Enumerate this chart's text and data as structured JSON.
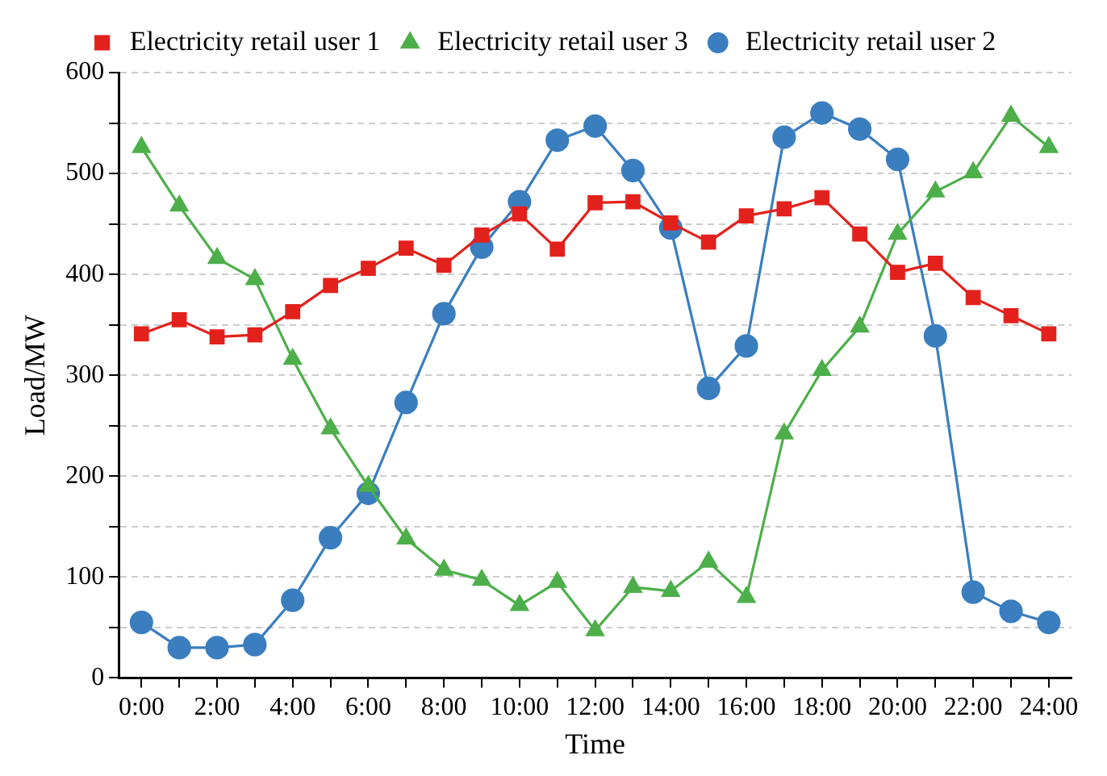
{
  "chart_data": {
    "type": "line",
    "xlabel": "Time",
    "ylabel": "Load/MW",
    "x": [
      0,
      1,
      2,
      3,
      4,
      5,
      6,
      7,
      8,
      9,
      10,
      11,
      12,
      13,
      14,
      15,
      16,
      17,
      18,
      19,
      20,
      21,
      22,
      23,
      24
    ],
    "series": [
      {
        "name": "Electricity retail user 1",
        "color": "#e3211c",
        "marker": "square",
        "values": [
          341,
          355,
          338,
          340,
          363,
          389,
          406,
          426,
          409,
          439,
          460,
          425,
          471,
          472,
          451,
          432,
          458,
          465,
          476,
          440,
          402,
          411,
          377,
          359,
          341
        ]
      },
      {
        "name": "Electricity retail user 2",
        "color": "#3a7ebf",
        "marker": "circle",
        "values": [
          55,
          30,
          30,
          33,
          77,
          139,
          183,
          273,
          361,
          427,
          472,
          533,
          547,
          503,
          446,
          287,
          329,
          536,
          560,
          544,
          514,
          339,
          85,
          66,
          55
        ]
      },
      {
        "name": "Electricity retail user 3",
        "color": "#4daf4a",
        "marker": "triangle",
        "values": [
          526,
          468,
          416,
          395,
          316,
          247,
          190,
          138,
          107,
          97,
          72,
          95,
          47,
          90,
          86,
          115,
          80,
          242,
          305,
          348,
          440,
          482,
          501,
          557,
          526
        ]
      }
    ],
    "xlim": [
      -0.6,
      24.6
    ],
    "xticks": [
      {
        "value": 0,
        "label": "0:00"
      },
      {
        "value": 1,
        "label": null
      },
      {
        "value": 2,
        "label": "2:00"
      },
      {
        "value": 3,
        "label": null
      },
      {
        "value": 4,
        "label": "4:00"
      },
      {
        "value": 5,
        "label": null
      },
      {
        "value": 6,
        "label": "6:00"
      },
      {
        "value": 7,
        "label": null
      },
      {
        "value": 8,
        "label": "8:00"
      },
      {
        "value": 9,
        "label": null
      },
      {
        "value": 10,
        "label": "10:00"
      },
      {
        "value": 11,
        "label": null
      },
      {
        "value": 12,
        "label": "12:00"
      },
      {
        "value": 13,
        "label": null
      },
      {
        "value": 14,
        "label": "14:00"
      },
      {
        "value": 15,
        "label": null
      },
      {
        "value": 16,
        "label": "16:00"
      },
      {
        "value": 17,
        "label": null
      },
      {
        "value": 18,
        "label": "18:00"
      },
      {
        "value": 19,
        "label": null
      },
      {
        "value": 20,
        "label": "20:00"
      },
      {
        "value": 21,
        "label": null
      },
      {
        "value": 22,
        "label": "22:00"
      },
      {
        "value": 23,
        "label": null
      },
      {
        "value": 24,
        "label": "24:00"
      }
    ],
    "ylim": [
      0,
      600
    ],
    "yticks": [
      0,
      {
        "value": 50,
        "label": null
      },
      100,
      {
        "value": 150,
        "label": null
      },
      200,
      {
        "value": 250,
        "label": null
      },
      300,
      {
        "value": 350,
        "label": null
      },
      400,
      {
        "value": 450,
        "label": null
      },
      500,
      {
        "value": 550,
        "label": null
      },
      600
    ],
    "grid": "y",
    "legend": "top",
    "line_style": "solid"
  }
}
